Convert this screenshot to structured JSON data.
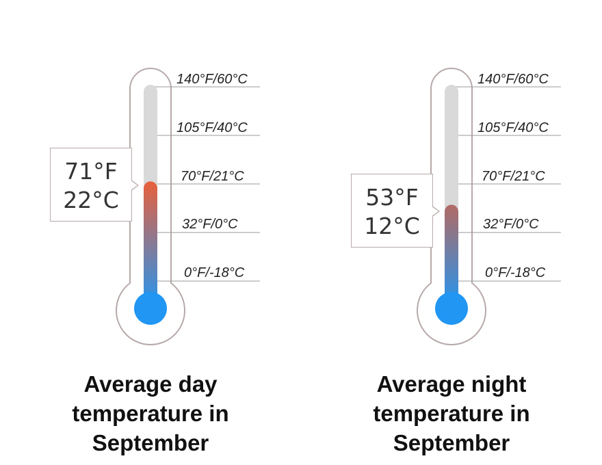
{
  "scale_labels": [
    "140°F/60°C",
    "105°F/40°C",
    "70°F/21°C",
    "32°F/0°C",
    "0°F/-18°C"
  ],
  "thermometers": [
    {
      "reading_f": "71°F",
      "reading_c": "22°C",
      "level_celsius": 22,
      "caption": "Average day temperature in September"
    },
    {
      "reading_f": "53°F",
      "reading_c": "12°C",
      "level_celsius": 12,
      "caption": "Average night temperature in September"
    }
  ],
  "colors": {
    "outline": "#b7a9a9",
    "empty_tube": "#d9d9d9",
    "bulb": "#2196f3",
    "hot": "#e8603c",
    "tick_line": "#999999"
  }
}
